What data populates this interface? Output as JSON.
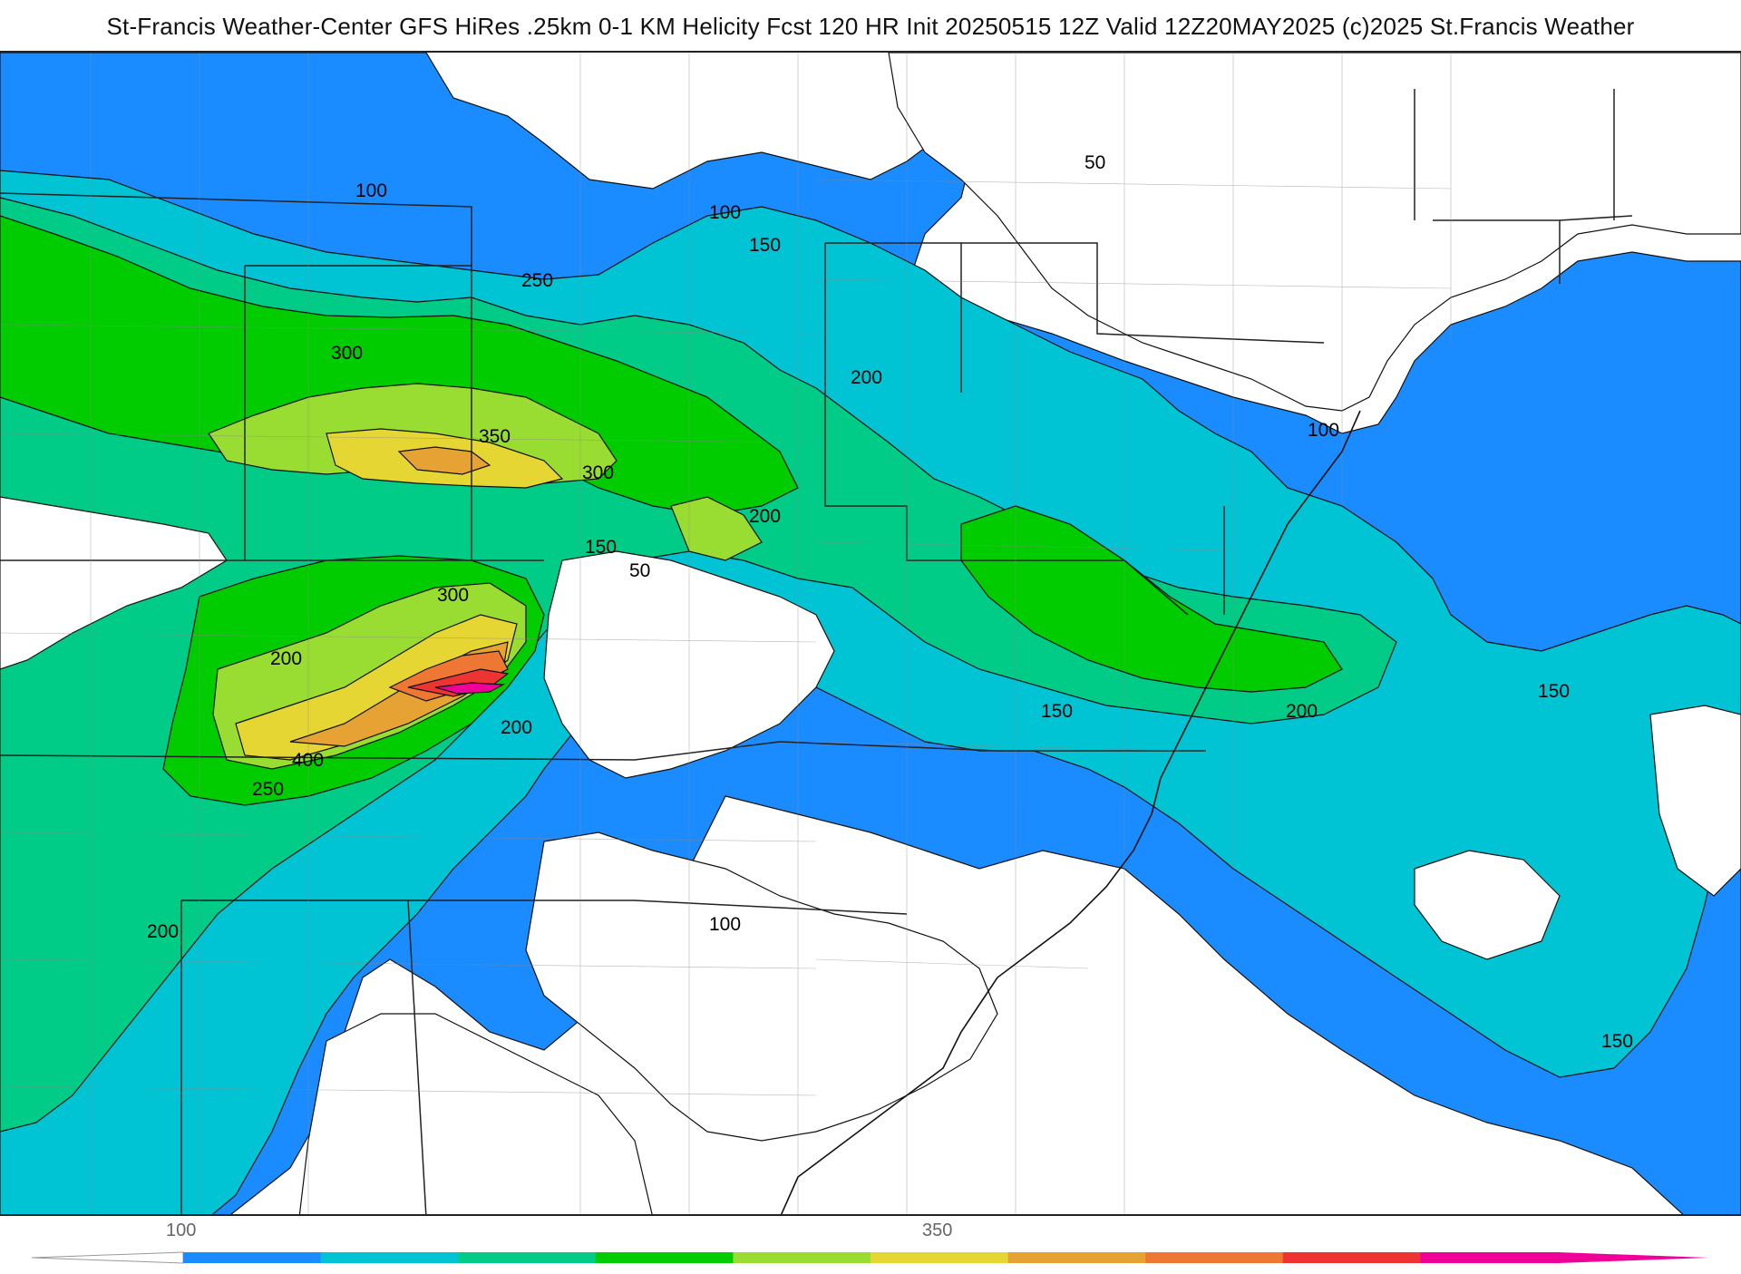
{
  "title": "St-Francis Weather-Center GFS HiRes .25km 0-1 KM Helicity Fcst 120 HR Init 20250515 12Z  Valid 12Z20MAY2025    (c)2025 St.Francis Weather",
  "contour_labels": [
    {
      "id": "c-100-a",
      "text": "100"
    },
    {
      "id": "c-100-b",
      "text": "100"
    },
    {
      "id": "c-150-a",
      "text": "150"
    },
    {
      "id": "c-250-a",
      "text": "250"
    },
    {
      "id": "c-300-a",
      "text": "300"
    },
    {
      "id": "c-350-a",
      "text": "350"
    },
    {
      "id": "c-300-b",
      "text": "300"
    },
    {
      "id": "c-200-a",
      "text": "200"
    },
    {
      "id": "c-200-b",
      "text": "200"
    },
    {
      "id": "c-150-b",
      "text": "150"
    },
    {
      "id": "c-50-a",
      "text": "50"
    },
    {
      "id": "c-300-c",
      "text": "300"
    },
    {
      "id": "c-200-c",
      "text": "200"
    },
    {
      "id": "c-200-d",
      "text": "200"
    },
    {
      "id": "c-400-a",
      "text": "400"
    },
    {
      "id": "c-250-b",
      "text": "250"
    },
    {
      "id": "c-200-e",
      "text": "200"
    },
    {
      "id": "c-100-c",
      "text": "100"
    },
    {
      "id": "c-50-b",
      "text": "50"
    },
    {
      "id": "c-100-d",
      "text": "100"
    },
    {
      "id": "c-150-c",
      "text": "150"
    },
    {
      "id": "c-200-f",
      "text": "200"
    },
    {
      "id": "c-150-d",
      "text": "150"
    },
    {
      "id": "c-150-e",
      "text": "150"
    }
  ],
  "legend": {
    "tick_labels": [
      "100",
      "350"
    ],
    "colors": [
      "#1a8cff",
      "#00c4d4",
      "#00cc88",
      "#00cc00",
      "#99dd33",
      "#e6d633",
      "#e6a333",
      "#ee7733",
      "#ee3333",
      "#ee0099"
    ]
  },
  "shading_colors": {
    "below_50": "#ffffff",
    "h100": "#1a8cff",
    "h150": "#00c4d4",
    "h200": "#00cc88",
    "h250": "#00cc00",
    "h300": "#99dd33",
    "h350": "#e6d633",
    "h400": "#e6a333",
    "h450": "#ee7733",
    "h500": "#ee3333",
    "h550": "#ee0099"
  }
}
